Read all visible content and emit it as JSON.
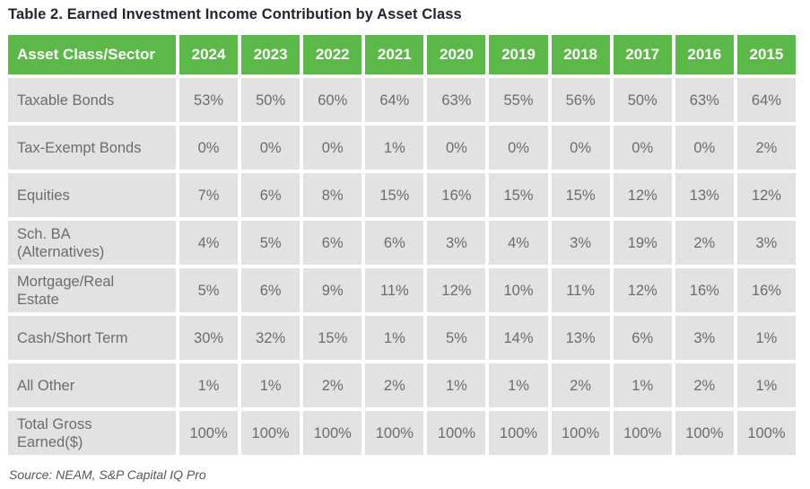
{
  "title": "Table 2. Earned Investment Income Contribution by Asset Class",
  "source": "Source: NEAM, S&P Capital IQ Pro",
  "colors": {
    "header_green": "#5cb848",
    "cell_gray": "#e3e2e3",
    "data_text_gray": "#6b6c6f",
    "title_color": "#26242f",
    "header_text": "#ffffff"
  },
  "chart_data": {
    "type": "table",
    "title": "Table 2. Earned Investment Income Contribution by Asset Class",
    "units": "percent of earned investment income",
    "columns": [
      "Asset Class/Sector",
      "2024",
      "2023",
      "2022",
      "2021",
      "2020",
      "2019",
      "2018",
      "2017",
      "2016",
      "2015"
    ],
    "rows": [
      {
        "label": "Taxable Bonds",
        "values": [
          "53%",
          "50%",
          "60%",
          "64%",
          "63%",
          "55%",
          "56%",
          "50%",
          "63%",
          "64%"
        ]
      },
      {
        "label": "Tax-Exempt Bonds",
        "values": [
          "0%",
          "0%",
          "0%",
          "1%",
          "0%",
          "0%",
          "0%",
          "0%",
          "0%",
          "2%"
        ]
      },
      {
        "label": "Equities",
        "values": [
          "7%",
          "6%",
          "8%",
          "15%",
          "16%",
          "15%",
          "15%",
          "12%",
          "13%",
          "12%"
        ]
      },
      {
        "label": "Sch. BA\n(Alternatives)",
        "values": [
          "4%",
          "5%",
          "6%",
          "6%",
          "3%",
          "4%",
          "3%",
          "19%",
          "2%",
          "3%"
        ]
      },
      {
        "label": "Mortgage/Real\nEstate",
        "values": [
          "5%",
          "6%",
          "9%",
          "11%",
          "12%",
          "10%",
          "11%",
          "12%",
          "16%",
          "16%"
        ]
      },
      {
        "label": "Cash/Short Term",
        "values": [
          "30%",
          "32%",
          "15%",
          "1%",
          "5%",
          "14%",
          "13%",
          "6%",
          "3%",
          "1%"
        ]
      },
      {
        "label": "All Other",
        "values": [
          "1%",
          "1%",
          "2%",
          "2%",
          "1%",
          "1%",
          "2%",
          "1%",
          "2%",
          "1%"
        ]
      },
      {
        "label": "Total Gross\nEarned($)",
        "values": [
          "100%",
          "100%",
          "100%",
          "100%",
          "100%",
          "100%",
          "100%",
          "100%",
          "100%",
          "100%"
        ]
      }
    ],
    "legend": null,
    "grid": "white gutters between cells",
    "source": "Source: NEAM, S&P Capital IQ Pro"
  }
}
